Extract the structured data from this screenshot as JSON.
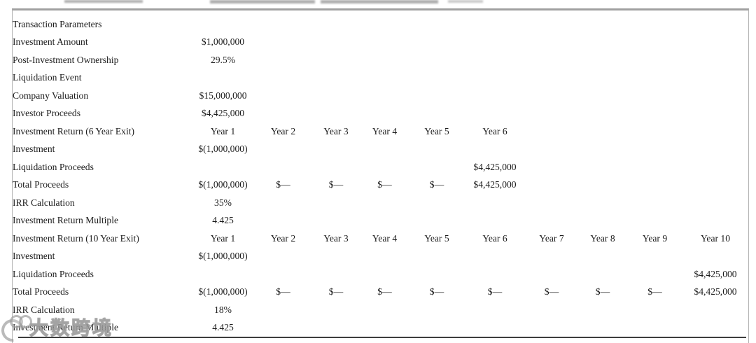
{
  "watermark": {
    "logo_icon": "double-circle-swoosh-logo",
    "text": "大数跨境"
  },
  "table": {
    "rows": [
      {
        "label": "Transaction Parameters",
        "cells": [
          "",
          "",
          "",
          "",
          "",
          "",
          "",
          "",
          "",
          ""
        ]
      },
      {
        "label": "Investment Amount",
        "cells": [
          "$1,000,000",
          "",
          "",
          "",
          "",
          "",
          "",
          "",
          "",
          ""
        ]
      },
      {
        "label": "Post-Investment Ownership",
        "cells": [
          "29.5%",
          "",
          "",
          "",
          "",
          "",
          "",
          "",
          "",
          ""
        ]
      },
      {
        "label": "Liquidation Event",
        "cells": [
          "",
          "",
          "",
          "",
          "",
          "",
          "",
          "",
          "",
          ""
        ]
      },
      {
        "label": "Company Valuation",
        "cells": [
          "$15,000,000",
          "",
          "",
          "",
          "",
          "",
          "",
          "",
          "",
          ""
        ]
      },
      {
        "label": "Investor Proceeds",
        "cells": [
          "$4,425,000",
          "",
          "",
          "",
          "",
          "",
          "",
          "",
          "",
          ""
        ]
      },
      {
        "label": "Investment Return (6 Year Exit)",
        "cells": [
          "Year 1",
          "Year 2",
          "Year 3",
          "Year 4",
          "Year 5",
          "Year 6",
          "",
          "",
          "",
          ""
        ]
      },
      {
        "label": "Investment",
        "cells": [
          "$(1,000,000)",
          "",
          "",
          "",
          "",
          "",
          "",
          "",
          "",
          ""
        ]
      },
      {
        "label": "Liquidation Proceeds",
        "cells": [
          "",
          "",
          "",
          "",
          "",
          "$4,425,000",
          "",
          "",
          "",
          ""
        ]
      },
      {
        "label": "Total Proceeds",
        "cells": [
          "$(1,000,000)",
          "$—",
          "$—",
          "$—",
          "$—",
          "$4,425,000",
          "",
          "",
          "",
          ""
        ]
      },
      {
        "label": "IRR Calculation",
        "cells": [
          "35%",
          "",
          "",
          "",
          "",
          "",
          "",
          "",
          "",
          ""
        ]
      },
      {
        "label": "Investment Return Multiple",
        "cells": [
          "4.425",
          "",
          "",
          "",
          "",
          "",
          "",
          "",
          "",
          ""
        ]
      },
      {
        "label": "Investment Return (10 Year Exit)",
        "cells": [
          "Year 1",
          "Year 2",
          "Year 3",
          "Year 4",
          "Year 5",
          "Year 6",
          "Year 7",
          "Year 8",
          "Year 9",
          "Year 10"
        ]
      },
      {
        "label": "Investment",
        "cells": [
          "$(1,000,000)",
          "",
          "",
          "",
          "",
          "",
          "",
          "",
          "",
          ""
        ]
      },
      {
        "label": "Liquidation Proceeds",
        "cells": [
          "",
          "",
          "",
          "",
          "",
          "",
          "",
          "",
          "",
          "$4,425,000"
        ]
      },
      {
        "label": "Total Proceeds",
        "cells": [
          "$(1,000,000)",
          "$—",
          "$—",
          "$—",
          "$—",
          "$—",
          "$—",
          "$—",
          "$—",
          "$4,425,000"
        ]
      },
      {
        "label": "IRR Calculation",
        "cells": [
          "18%",
          "",
          "",
          "",
          "",
          "",
          "",
          "",
          "",
          ""
        ]
      },
      {
        "label": "Investment Return Multiple",
        "cells": [
          "4.425",
          "",
          "",
          "",
          "",
          "",
          "",
          "",
          "",
          ""
        ]
      }
    ]
  }
}
